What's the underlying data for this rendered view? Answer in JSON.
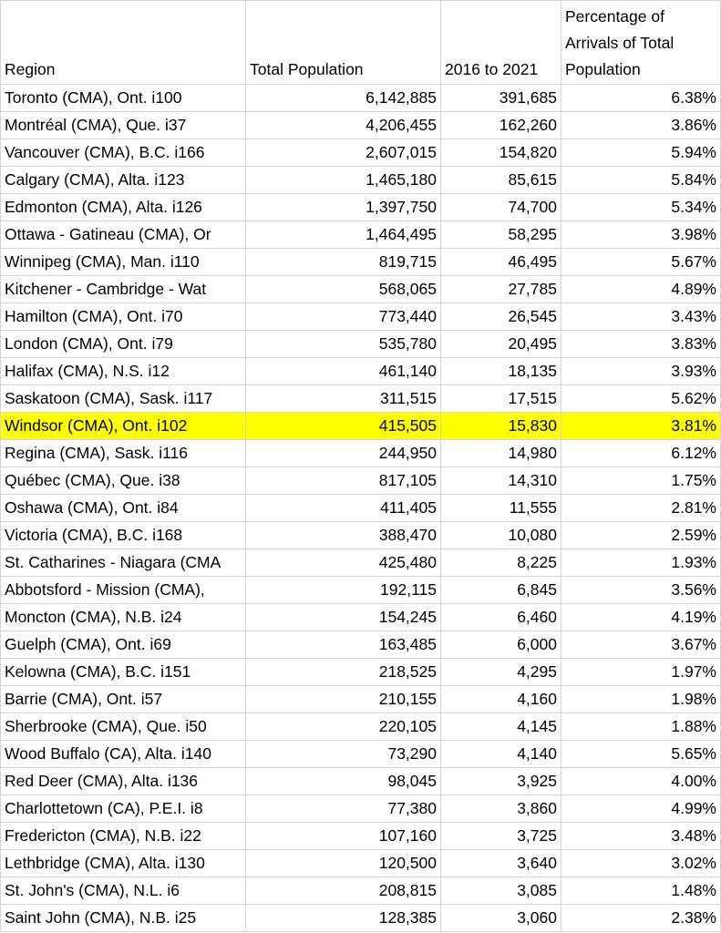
{
  "headers": {
    "region": "Region",
    "total_population": "Total Population",
    "period": "2016 to 2021",
    "percentage": "Percentage of Arrivals of Total Population"
  },
  "highlight_color": "#ffff00",
  "rows": [
    {
      "region": "Toronto (CMA), Ont. i100",
      "population": "6,142,885",
      "arrivals": "391,685",
      "pct": "6.38%"
    },
    {
      "region": "Montréal (CMA), Que. i37",
      "population": "4,206,455",
      "arrivals": "162,260",
      "pct": "3.86%"
    },
    {
      "region": "Vancouver (CMA), B.C. i166",
      "population": "2,607,015",
      "arrivals": "154,820",
      "pct": "5.94%"
    },
    {
      "region": "Calgary (CMA), Alta. i123",
      "population": "1,465,180",
      "arrivals": "85,615",
      "pct": "5.84%"
    },
    {
      "region": "Edmonton (CMA), Alta. i126",
      "population": "1,397,750",
      "arrivals": "74,700",
      "pct": "5.34%"
    },
    {
      "region": "Ottawa - Gatineau (CMA), Or",
      "population": "1,464,495",
      "arrivals": "58,295",
      "pct": "3.98%"
    },
    {
      "region": "Winnipeg (CMA), Man. i110",
      "population": "819,715",
      "arrivals": "46,495",
      "pct": "5.67%"
    },
    {
      "region": "Kitchener - Cambridge - Wat",
      "population": "568,065",
      "arrivals": "27,785",
      "pct": "4.89%"
    },
    {
      "region": "Hamilton (CMA), Ont. i70",
      "population": "773,440",
      "arrivals": "26,545",
      "pct": "3.43%"
    },
    {
      "region": "London (CMA), Ont. i79",
      "population": "535,780",
      "arrivals": "20,495",
      "pct": "3.83%"
    },
    {
      "region": "Halifax (CMA), N.S. i12",
      "population": "461,140",
      "arrivals": "18,135",
      "pct": "3.93%"
    },
    {
      "region": "Saskatoon (CMA), Sask. i117",
      "population": "311,515",
      "arrivals": "17,515",
      "pct": "5.62%"
    },
    {
      "region": "Windsor (CMA), Ont. i102",
      "population": "415,505",
      "arrivals": "15,830",
      "pct": "3.81%",
      "highlighted": true
    },
    {
      "region": "Regina (CMA), Sask. i116",
      "population": "244,950",
      "arrivals": "14,980",
      "pct": "6.12%"
    },
    {
      "region": "Québec (CMA), Que. i38",
      "population": "817,105",
      "arrivals": "14,310",
      "pct": "1.75%"
    },
    {
      "region": "Oshawa (CMA), Ont. i84",
      "population": "411,405",
      "arrivals": "11,555",
      "pct": "2.81%"
    },
    {
      "region": "Victoria (CMA), B.C. i168",
      "population": "388,470",
      "arrivals": "10,080",
      "pct": "2.59%"
    },
    {
      "region": "St. Catharines - Niagara (CMA",
      "population": "425,480",
      "arrivals": "8,225",
      "pct": "1.93%"
    },
    {
      "region": "Abbotsford - Mission (CMA),",
      "population": "192,115",
      "arrivals": "6,845",
      "pct": "3.56%"
    },
    {
      "region": "Moncton (CMA), N.B. i24",
      "population": "154,245",
      "arrivals": "6,460",
      "pct": "4.19%"
    },
    {
      "region": "Guelph (CMA), Ont. i69",
      "population": "163,485",
      "arrivals": "6,000",
      "pct": "3.67%"
    },
    {
      "region": "Kelowna (CMA), B.C. i151",
      "population": "218,525",
      "arrivals": "4,295",
      "pct": "1.97%"
    },
    {
      "region": "Barrie (CMA), Ont. i57",
      "population": "210,155",
      "arrivals": "4,160",
      "pct": "1.98%"
    },
    {
      "region": "Sherbrooke (CMA), Que. i50",
      "population": "220,105",
      "arrivals": "4,145",
      "pct": "1.88%"
    },
    {
      "region": "Wood Buffalo (CA), Alta. i140",
      "population": "73,290",
      "arrivals": "4,140",
      "pct": "5.65%"
    },
    {
      "region": "Red Deer (CMA), Alta. i136",
      "population": "98,045",
      "arrivals": "3,925",
      "pct": "4.00%"
    },
    {
      "region": "Charlottetown (CA), P.E.I. i8",
      "population": "77,380",
      "arrivals": "3,860",
      "pct": "4.99%"
    },
    {
      "region": "Fredericton (CMA), N.B. i22",
      "population": "107,160",
      "arrivals": "3,725",
      "pct": "3.48%"
    },
    {
      "region": "Lethbridge (CMA), Alta. i130",
      "population": "120,500",
      "arrivals": "3,640",
      "pct": "3.02%"
    },
    {
      "region": "St. John's (CMA), N.L. i6",
      "population": "208,815",
      "arrivals": "3,085",
      "pct": "1.48%"
    },
    {
      "region": "Saint John (CMA), N.B. i25",
      "population": "128,385",
      "arrivals": "3,060",
      "pct": "2.38%"
    }
  ]
}
